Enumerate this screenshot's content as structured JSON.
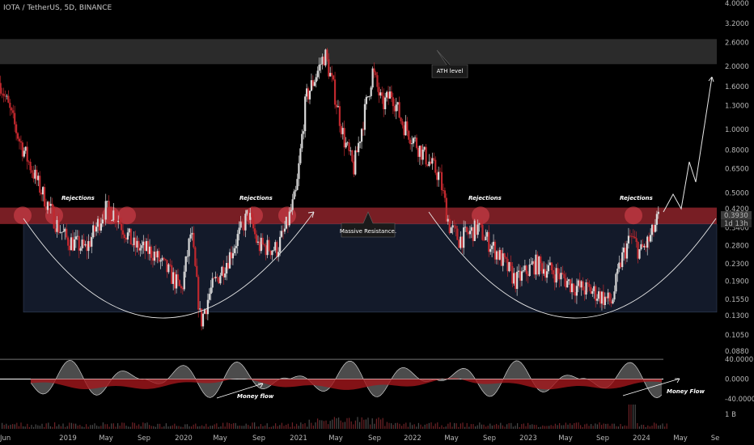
{
  "header": {
    "symbol_line": "IOTA / TetherUS, 5D, BINANCE"
  },
  "price_badge": {
    "price": "0.3930",
    "countdown": "1d 13h"
  },
  "annotations": {
    "ath": "ATH level",
    "resistance": "Massive Resistance.",
    "rejections": [
      "Rejections",
      "Rejections",
      "Rejections",
      "Rejections"
    ],
    "money_flow_1": "Money flow",
    "money_flow_2": "Money Flow"
  },
  "colors": {
    "background": "#000000",
    "resistance_zone": "#c8323c",
    "ath_zone": "#3a3a3a",
    "range_box": "#131a2a",
    "candle_up": "#d9d9d9",
    "candle_down": "#c0282e",
    "osc_gray": "#8a8a8a",
    "osc_red": "#a4161c"
  },
  "chart_data": {
    "type": "candlestick",
    "symbol": "IOTA / TetherUS",
    "interval": "5D",
    "exchange": "BINANCE",
    "y_scale": "log",
    "ylim": [
      0.085,
      4.0
    ],
    "price_axis_ticks": [
      "4.0000",
      "3.2000",
      "2.6000",
      "2.0000",
      "1.6000",
      "1.3000",
      "1.0000",
      "0.8000",
      "0.6500",
      "0.5000",
      "0.4200",
      "0.3400",
      "0.2800",
      "0.2300",
      "0.1900",
      "0.1550",
      "0.1300",
      "0.1050",
      "0.0880"
    ],
    "time_axis_labels": [
      "Jun",
      "2019",
      "May",
      "Sep",
      "2020",
      "May",
      "Sep",
      "2021",
      "May",
      "Sep",
      "2022",
      "May",
      "Sep",
      "2023",
      "May",
      "Sep",
      "2024",
      "May",
      "Se"
    ],
    "last_price": 0.393,
    "zones": {
      "ath_zone": [
        2.05,
        2.7
      ],
      "resistance_zone": [
        0.355,
        0.425
      ],
      "range_box": [
        0.135,
        0.355
      ]
    },
    "price_path": [
      [
        "2018-06",
        1.7
      ],
      [
        "2018-08",
        0.9
      ],
      [
        "2018-10",
        0.55
      ],
      [
        "2018-12",
        0.35
      ],
      [
        "2019-01",
        0.3
      ],
      [
        "2019-03",
        0.27
      ],
      [
        "2019-05",
        0.42
      ],
      [
        "2019-06",
        0.4
      ],
      [
        "2019-08",
        0.28
      ],
      [
        "2019-10",
        0.26
      ],
      [
        "2019-12",
        0.2
      ],
      [
        "2020-01",
        0.17
      ],
      [
        "2020-02",
        0.33
      ],
      [
        "2020-03",
        0.12
      ],
      [
        "2020-04",
        0.17
      ],
      [
        "2020-06",
        0.25
      ],
      [
        "2020-08",
        0.4
      ],
      [
        "2020-09",
        0.28
      ],
      [
        "2020-11",
        0.27
      ],
      [
        "2020-12",
        0.35
      ],
      [
        "2021-01",
        0.5
      ],
      [
        "2021-02",
        1.4
      ],
      [
        "2021-04",
        2.3
      ],
      [
        "2021-05",
        1.5
      ],
      [
        "2021-06",
        0.9
      ],
      [
        "2021-07",
        0.65
      ],
      [
        "2021-09",
        1.9
      ],
      [
        "2021-10",
        1.3
      ],
      [
        "2021-11",
        1.5
      ],
      [
        "2021-12",
        1.1
      ],
      [
        "2022-02",
        0.8
      ],
      [
        "2022-04",
        0.6
      ],
      [
        "2022-05",
        0.35
      ],
      [
        "2022-06",
        0.3
      ],
      [
        "2022-08",
        0.34
      ],
      [
        "2022-10",
        0.26
      ],
      [
        "2022-12",
        0.19
      ],
      [
        "2023-02",
        0.23
      ],
      [
        "2023-04",
        0.21
      ],
      [
        "2023-06",
        0.18
      ],
      [
        "2023-08",
        0.17
      ],
      [
        "2023-10",
        0.15
      ],
      [
        "2023-11",
        0.24
      ],
      [
        "2023-12",
        0.31
      ],
      [
        "2024-01",
        0.26
      ],
      [
        "2024-02",
        0.3
      ],
      [
        "2024-03",
        0.393
      ]
    ],
    "projection": [
      [
        "2024-03",
        0.42
      ],
      [
        "2024-04",
        0.65
      ],
      [
        "2024-05",
        0.5
      ],
      [
        "2024-07",
        1.75
      ]
    ],
    "oscillator": {
      "ticks": [
        "40.0000",
        "0.0000",
        "-40.0000"
      ],
      "ylim": [
        -45,
        45
      ]
    },
    "volume_axis_label": "1 B"
  }
}
